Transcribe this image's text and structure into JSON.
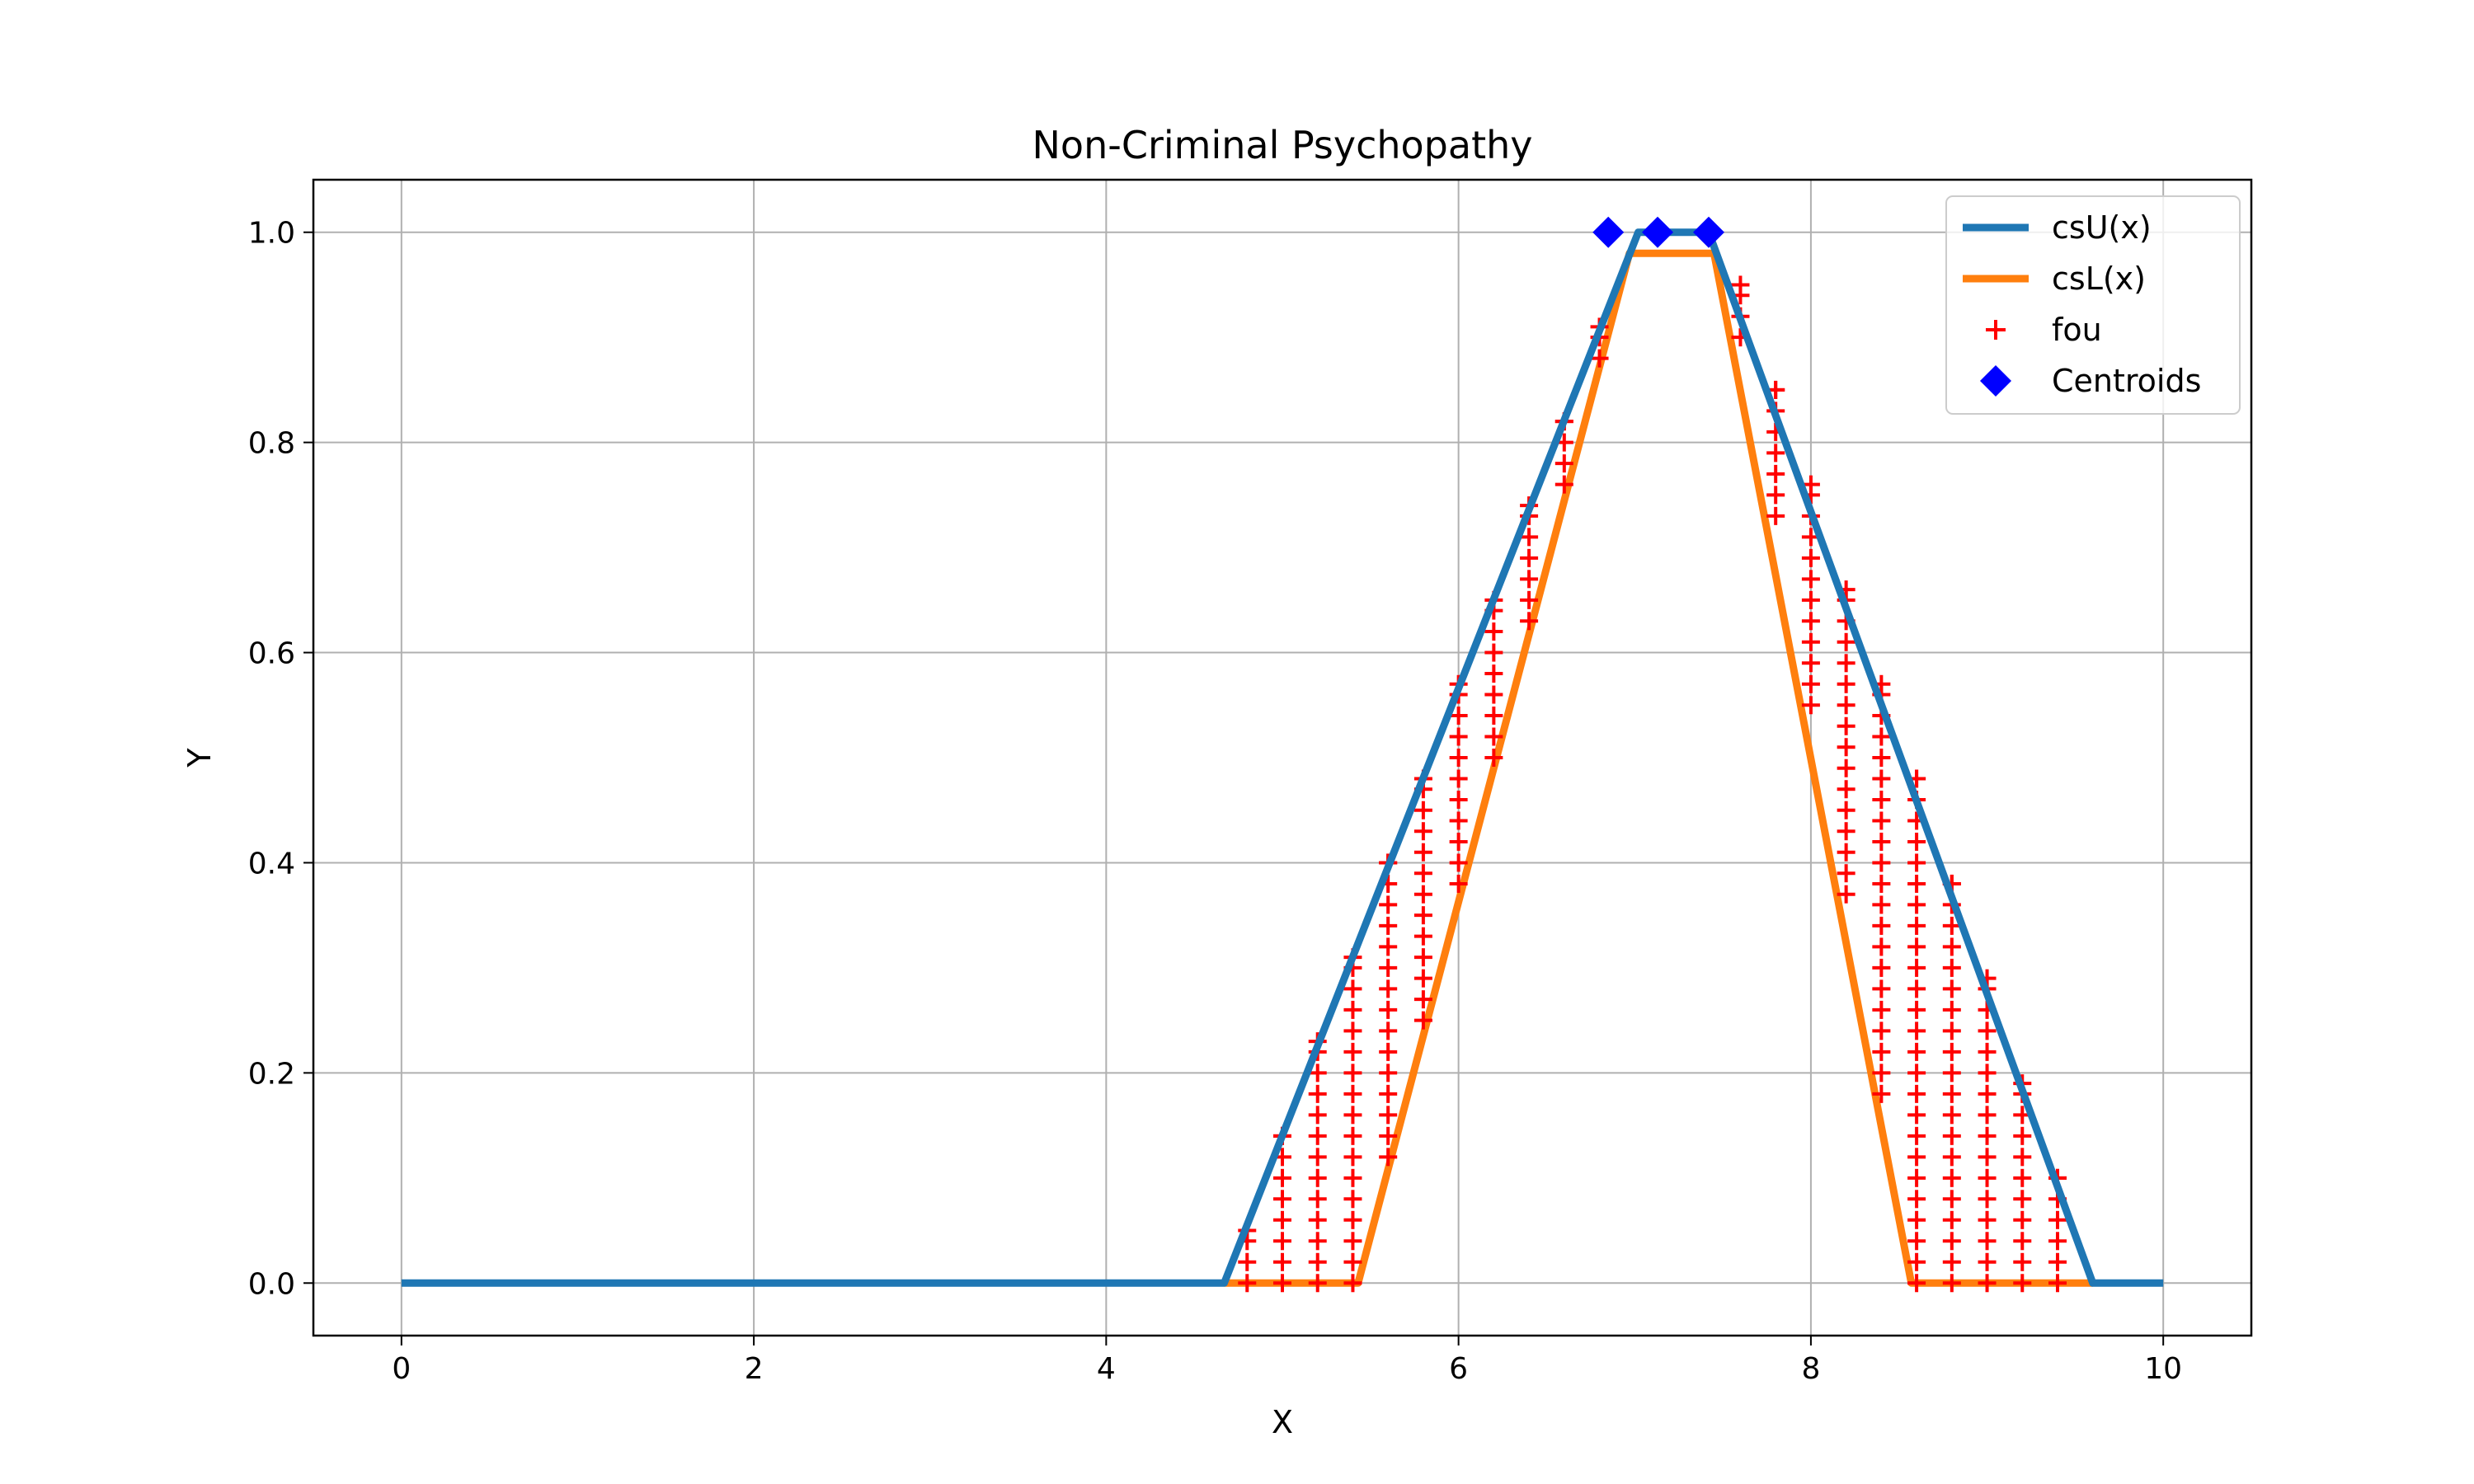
{
  "chart_data": {
    "type": "line",
    "title": "Non-Criminal Psychopathy",
    "xlabel": "X",
    "ylabel": "Y",
    "xlim": [
      -0.5,
      10.5
    ],
    "ylim": [
      -0.05,
      1.05
    ],
    "xticks": [
      0,
      2,
      4,
      6,
      8,
      10
    ],
    "yticks": [
      0.0,
      0.2,
      0.4,
      0.6,
      0.8,
      1.0
    ],
    "xtick_labels": [
      "0",
      "2",
      "4",
      "6",
      "8",
      "10"
    ],
    "ytick_labels": [
      "0.0",
      "0.2",
      "0.4",
      "0.6",
      "0.8",
      "1.0"
    ],
    "grid": true,
    "legend_position": "top-right",
    "legend": [
      "csU(x)",
      "csL(x)",
      "fou",
      "Centroids"
    ],
    "series": [
      {
        "name": "csU(x)",
        "color": "#1f77b4",
        "x": [
          0,
          4.67,
          7.02,
          7.42,
          9.6,
          10
        ],
        "y": [
          0,
          0,
          1,
          1,
          0,
          0
        ]
      },
      {
        "name": "csL(x)",
        "color": "#ff7f0e",
        "x": [
          4.67,
          5.43,
          6.97,
          7.45,
          8.57,
          9.6
        ],
        "y": [
          0,
          0,
          0.98,
          0.98,
          0,
          0
        ]
      },
      {
        "name": "fou",
        "color": "#ff0000",
        "x": [
          4.8,
          5.0,
          5.2,
          5.4,
          5.6,
          5.8,
          6.0,
          6.2,
          6.4,
          6.6,
          6.8,
          7.6,
          7.8,
          8.0,
          8.2,
          8.4,
          8.6,
          8.8,
          9.0,
          9.2,
          9.4
        ],
        "upper": [
          0.05,
          0.14,
          0.23,
          0.31,
          0.4,
          0.48,
          0.57,
          0.65,
          0.74,
          0.82,
          0.91,
          0.95,
          0.85,
          0.76,
          0.66,
          0.57,
          0.48,
          0.38,
          0.29,
          0.19,
          0.1
        ],
        "lower": [
          0,
          0,
          0,
          0,
          0.12,
          0.25,
          0.38,
          0.5,
          0.63,
          0.76,
          0.88,
          0.9,
          0.73,
          0.55,
          0.37,
          0.18,
          0,
          0,
          0,
          0,
          0
        ]
      },
      {
        "name": "Centroids",
        "color": "#0000ff",
        "x": [
          6.85,
          7.13,
          7.42
        ],
        "y": [
          1.0,
          1.0,
          1.0
        ]
      }
    ]
  }
}
